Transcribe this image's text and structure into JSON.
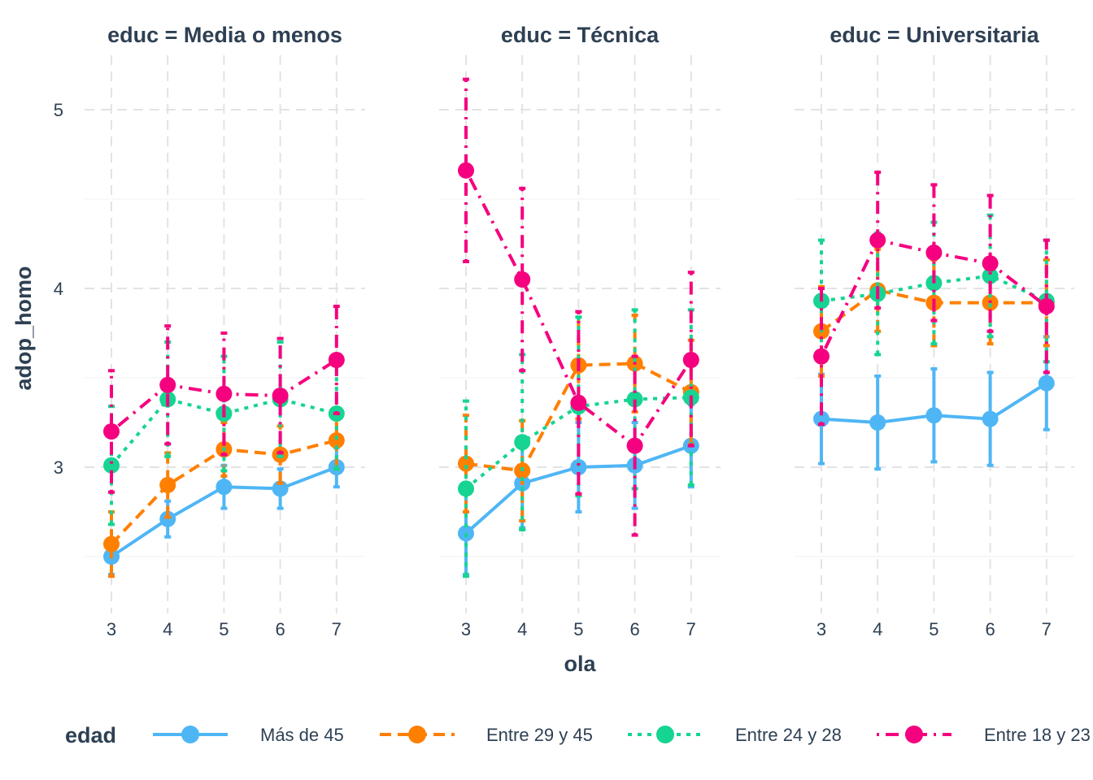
{
  "chart_data": {
    "type": "line",
    "subtype": "faceted line chart with points and error bars",
    "facet_titles": [
      "educ = Media o menos",
      "educ = Técnica",
      "educ = Universitaria"
    ],
    "xlabel": "ola",
    "ylabel": "adop_homo",
    "x": [
      3,
      4,
      5,
      6,
      7
    ],
    "ylim": [
      2.3,
      5.3
    ],
    "y_ticks": [
      "3",
      "4",
      "5"
    ],
    "grid": true,
    "legend": {
      "title": "edad",
      "position": "bottom",
      "entries": [
        "Más de 45",
        "Entre 29 y 45",
        "Entre 24 y 28",
        "Entre 18 y 23"
      ]
    },
    "series_colors": [
      "#4FB6F5",
      "#FF7F00",
      "#16D492",
      "#F5007F"
    ],
    "series_linestyles": [
      "solid",
      "dashed",
      "dotted",
      "dashdot"
    ],
    "panels": [
      {
        "facet": "Media o menos",
        "series": [
          {
            "name": "Más de 45",
            "values": [
              2.5,
              2.71,
              2.89,
              2.88,
              3.0
            ],
            "lower": [
              2.4,
              2.61,
              2.77,
              2.77,
              2.89
            ],
            "upper": [
              2.6,
              2.81,
              3.01,
              2.99,
              3.11
            ]
          },
          {
            "name": "Entre 29 y 45",
            "values": [
              2.57,
              2.9,
              3.1,
              3.07,
              3.15
            ],
            "lower": [
              2.39,
              2.72,
              2.95,
              2.91,
              2.99
            ],
            "upper": [
              2.75,
              3.08,
              3.25,
              3.23,
              3.31
            ]
          },
          {
            "name": "Entre 24 y 28",
            "values": [
              3.01,
              3.38,
              3.3,
              3.38,
              3.3
            ],
            "lower": [
              2.68,
              3.06,
              2.98,
              3.06,
              2.99
            ],
            "upper": [
              3.34,
              3.7,
              3.62,
              3.7,
              3.61
            ]
          },
          {
            "name": "Entre 18 y 23",
            "values": [
              3.2,
              3.46,
              3.41,
              3.4,
              3.6
            ],
            "lower": [
              2.86,
              3.13,
              3.07,
              3.08,
              3.3
            ],
            "upper": [
              3.54,
              3.79,
              3.75,
              3.72,
              3.9
            ]
          }
        ]
      },
      {
        "facet": "Técnica",
        "series": [
          {
            "name": "Más de 45",
            "values": [
              2.63,
              2.91,
              3.0,
              3.01,
              3.12
            ],
            "lower": [
              2.4,
              2.66,
              2.75,
              2.77,
              2.89
            ],
            "upper": [
              2.86,
              3.16,
              3.25,
              3.25,
              3.35
            ]
          },
          {
            "name": "Entre 29 y 45",
            "values": [
              3.02,
              2.98,
              3.57,
              3.58,
              3.42
            ],
            "lower": [
              2.75,
              2.7,
              3.27,
              3.31,
              3.13
            ],
            "upper": [
              3.29,
              3.26,
              3.87,
              3.85,
              3.71
            ]
          },
          {
            "name": "Entre 24 y 28",
            "values": [
              2.88,
              3.14,
              3.34,
              3.38,
              3.39
            ],
            "lower": [
              2.39,
              2.65,
              2.84,
              2.88,
              2.9
            ],
            "upper": [
              3.37,
              3.63,
              3.84,
              3.88,
              3.88
            ]
          },
          {
            "name": "Entre 18 y 23",
            "values": [
              4.66,
              4.05,
              3.36,
              3.12,
              3.6
            ],
            "lower": [
              4.15,
              3.54,
              2.85,
              2.62,
              3.12
            ],
            "upper": [
              5.17,
              4.56,
              3.87,
              3.62,
              4.09
            ]
          }
        ]
      },
      {
        "facet": "Universitaria",
        "series": [
          {
            "name": "Más de 45",
            "values": [
              3.27,
              3.25,
              3.29,
              3.27,
              3.47
            ],
            "lower": [
              3.02,
              2.99,
              3.03,
              3.01,
              3.21
            ],
            "upper": [
              3.52,
              3.51,
              3.55,
              3.53,
              3.73
            ]
          },
          {
            "name": "Entre 29 y 45",
            "values": [
              3.76,
              3.99,
              3.92,
              3.92,
              3.92
            ],
            "lower": [
              3.51,
              3.76,
              3.68,
              3.69,
              3.68
            ],
            "upper": [
              4.01,
              4.22,
              4.16,
              4.15,
              4.16
            ]
          },
          {
            "name": "Entre 24 y 28",
            "values": [
              3.93,
              3.97,
              4.03,
              4.07,
              3.93
            ],
            "lower": [
              3.59,
              3.63,
              3.69,
              3.73,
              3.59
            ],
            "upper": [
              4.27,
              4.31,
              4.37,
              4.41,
              4.27
            ]
          },
          {
            "name": "Entre 18 y 23",
            "values": [
              3.62,
              4.27,
              4.2,
              4.14,
              3.9
            ],
            "lower": [
              3.24,
              3.89,
              3.82,
              3.76,
              3.53
            ],
            "upper": [
              4.0,
              4.65,
              4.58,
              4.52,
              4.27
            ]
          }
        ]
      }
    ]
  }
}
